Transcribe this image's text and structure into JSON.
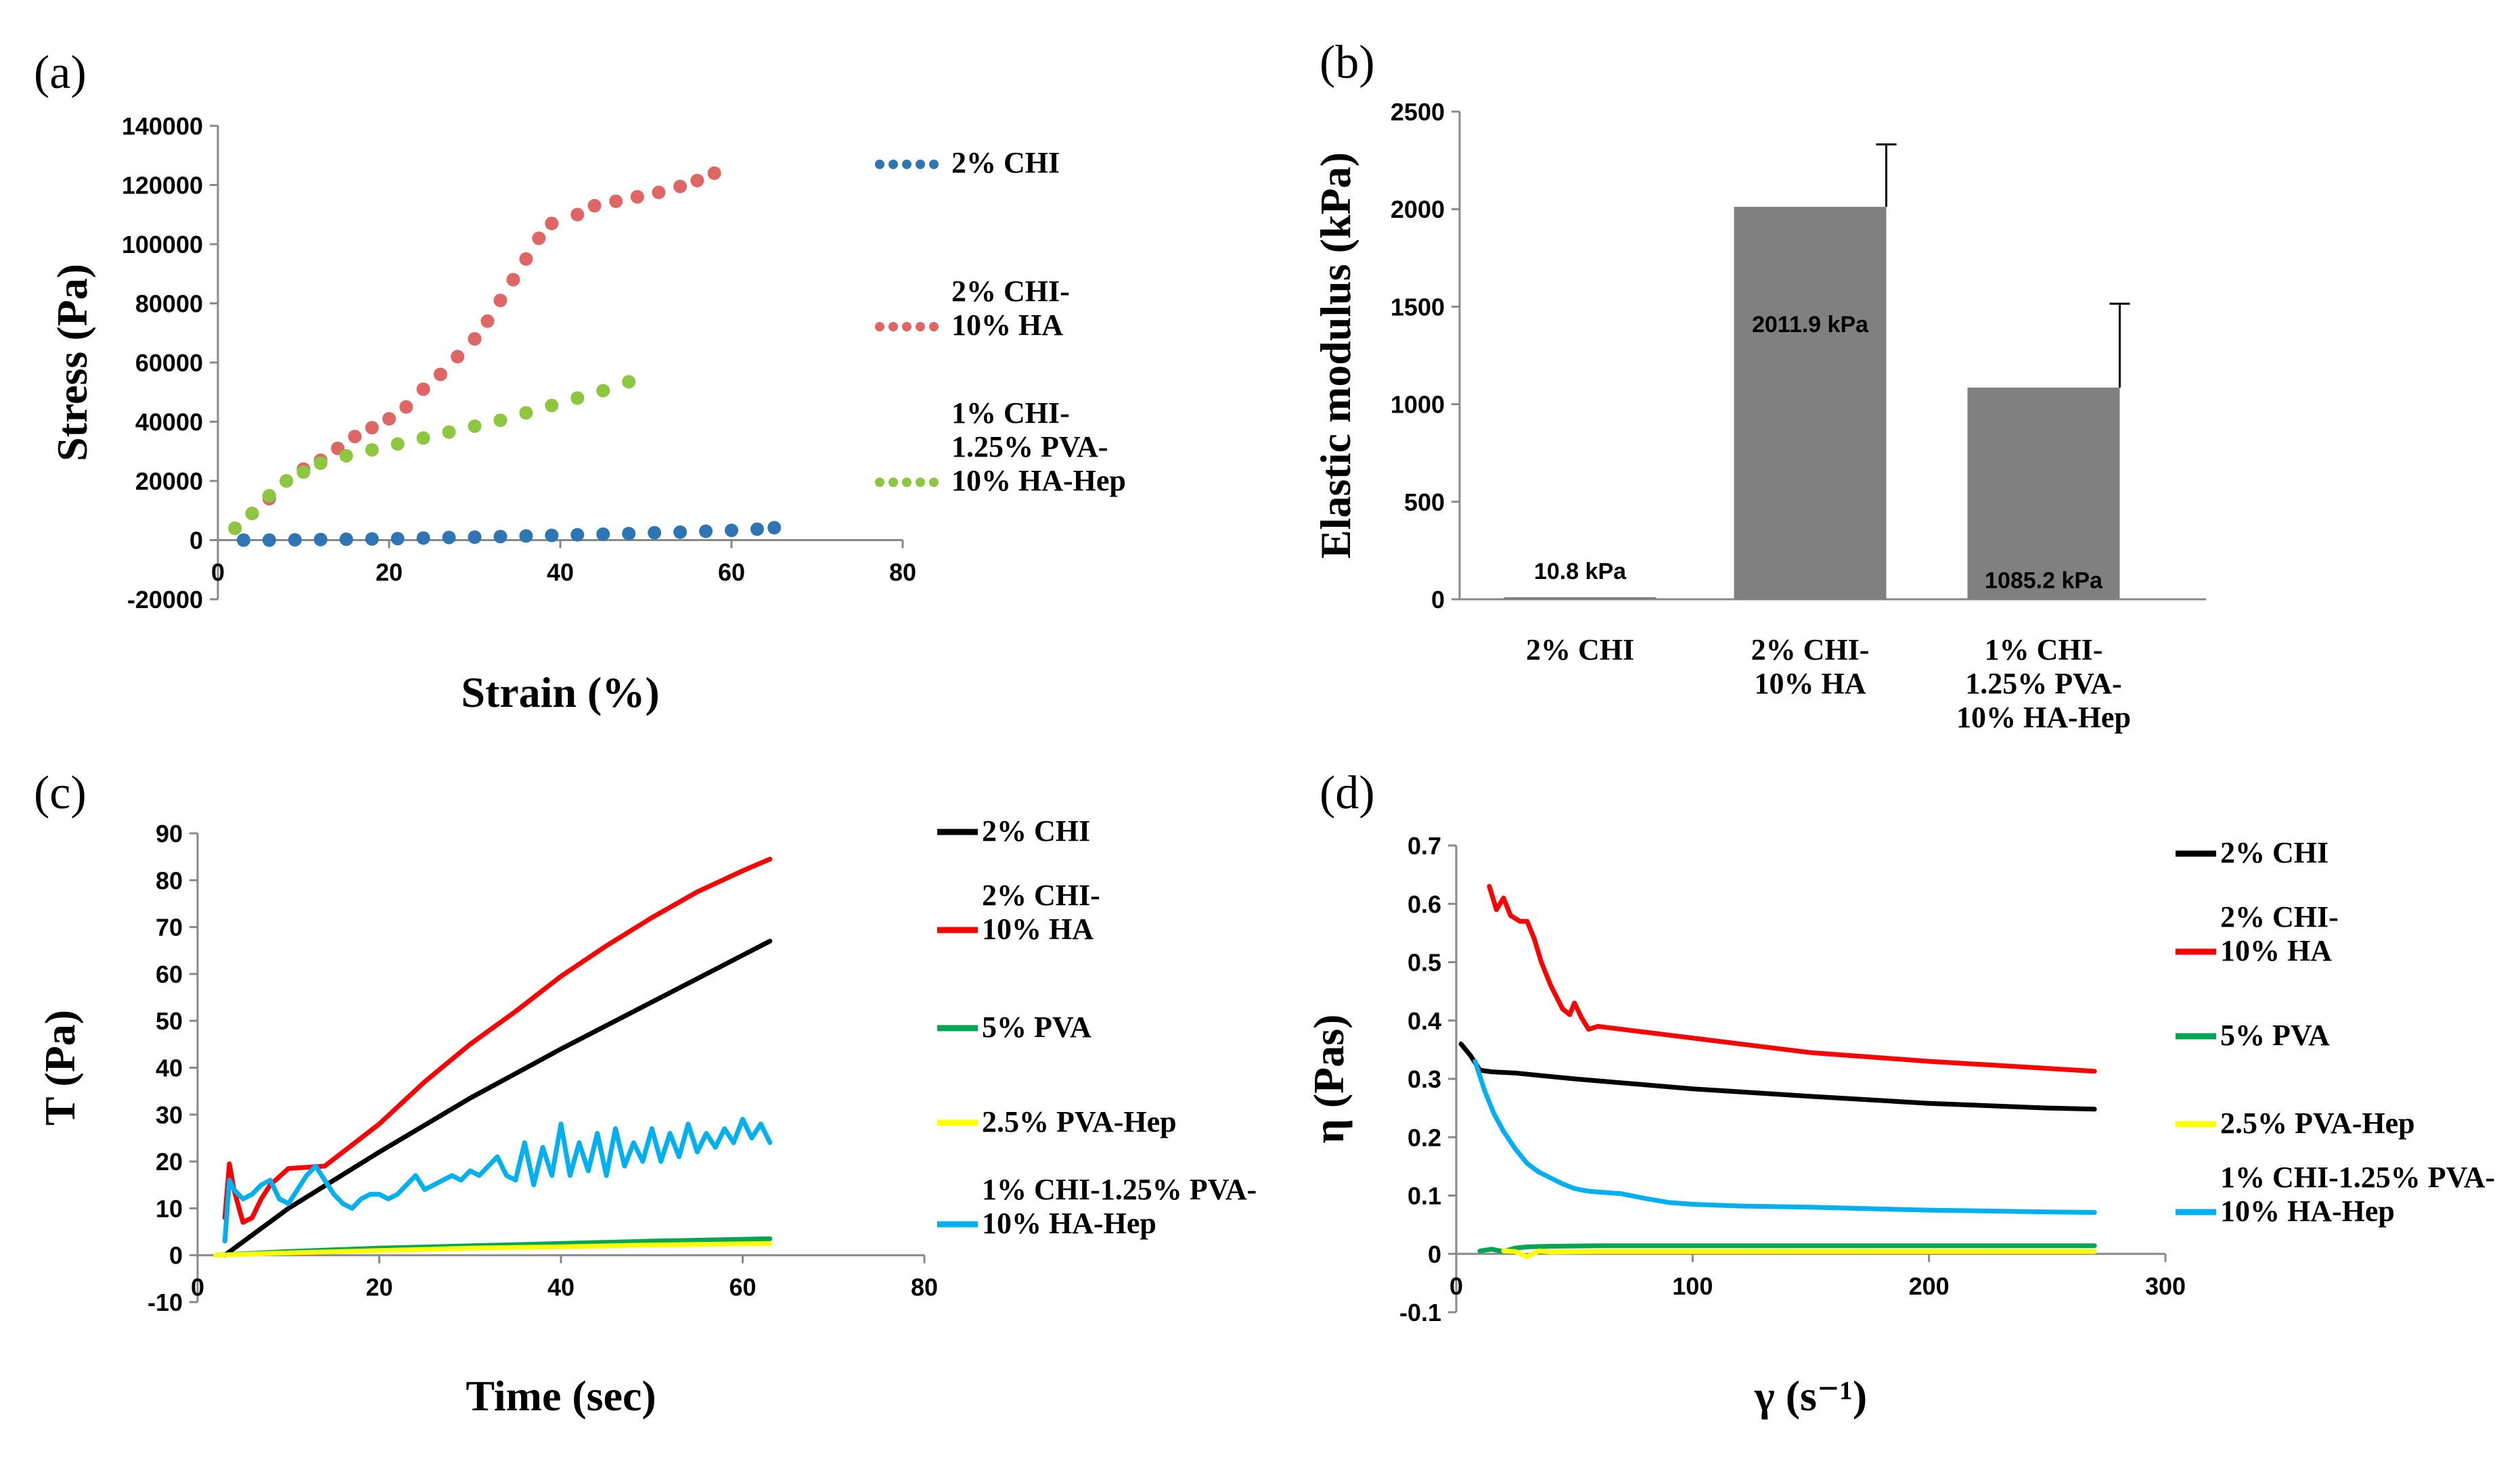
{
  "chart_data": [
    {
      "panel": "(a)",
      "type": "scatter",
      "xlabel": "Strain (%)",
      "ylabel": "Stress (Pa)",
      "xlim": [
        0,
        80
      ],
      "ylim": [
        -20000,
        140000
      ],
      "xticks": [
        "0",
        "20",
        "40",
        "60",
        "80"
      ],
      "yticks": [
        "-20000",
        "0",
        "20000",
        "40000",
        "60000",
        "80000",
        "100000",
        "120000",
        "140000"
      ],
      "legend_position": "right",
      "series": [
        {
          "name": "2% CHI",
          "color": "#2e75b6",
          "x": [
            3,
            6,
            9,
            12,
            15,
            18,
            21,
            24,
            27,
            30,
            33,
            36,
            39,
            42,
            45,
            48,
            51,
            54,
            57,
            60,
            63,
            65
          ],
          "y": [
            0,
            0,
            100,
            200,
            300,
            400,
            500,
            700,
            900,
            1000,
            1200,
            1400,
            1600,
            1800,
            2000,
            2200,
            2500,
            2700,
            3000,
            3300,
            3700,
            4200
          ]
        },
        {
          "name": "2% CHI-\n10% HA",
          "color": "#e06666",
          "x": [
            2,
            4,
            6,
            8,
            10,
            12,
            14,
            16,
            18,
            20,
            22,
            24,
            26,
            28,
            30,
            31.5,
            33,
            34.5,
            36,
            37.5,
            39,
            42,
            44,
            46.5,
            49,
            51.5,
            54,
            56,
            58
          ],
          "y": [
            4000,
            9000,
            14000,
            20000,
            24000,
            27000,
            31000,
            35000,
            38000,
            41000,
            45000,
            51000,
            56000,
            62000,
            68000,
            74000,
            81000,
            88000,
            95000,
            102000,
            107000,
            110000,
            113000,
            114500,
            116000,
            117500,
            119500,
            121500,
            124000
          ]
        },
        {
          "name": "1% CHI-\n1.25% PVA-\n10% HA-Hep",
          "color": "#8dc63f",
          "x": [
            2,
            4,
            6,
            8,
            10,
            12,
            15,
            18,
            21,
            24,
            27,
            30,
            33,
            36,
            39,
            42,
            45,
            48
          ],
          "y": [
            4000,
            9000,
            15000,
            20000,
            23000,
            26000,
            28500,
            30500,
            32500,
            34500,
            36500,
            38500,
            40500,
            43000,
            45500,
            48000,
            50500,
            53500
          ]
        }
      ]
    },
    {
      "panel": "(b)",
      "type": "bar",
      "ylabel": "Elastic modulus (kPa)",
      "ylim": [
        0,
        2500
      ],
      "yticks": [
        "0",
        "500",
        "1000",
        "1500",
        "2000",
        "2500"
      ],
      "categories": [
        "2% CHI",
        "2% CHI-\n10% HA",
        "1% CHI-\n1.25% PVA-\n10% HA-Hep"
      ],
      "values": [
        10.8,
        2011.9,
        1085.2
      ],
      "errors": [
        0,
        320,
        430
      ],
      "data_labels": [
        "10.8 kPa",
        "2011.9 kPa",
        "1085.2 kPa"
      ],
      "bar_color": "#808080"
    },
    {
      "panel": "(c)",
      "type": "line",
      "xlabel": "Time (sec)",
      "ylabel": "T (Pa)",
      "xlim": [
        0,
        80
      ],
      "ylim": [
        -10,
        90
      ],
      "xticks": [
        "0",
        "20",
        "40",
        "60",
        "80"
      ],
      "yticks": [
        "-10",
        "0",
        "10",
        "20",
        "30",
        "40",
        "50",
        "60",
        "70",
        "80",
        "90"
      ],
      "legend_position": "right",
      "series": [
        {
          "name": "2% CHI",
          "color": "#000000",
          "x": [
            3,
            10,
            20,
            30,
            40,
            50,
            60,
            63
          ],
          "y": [
            0,
            10,
            22,
            33.5,
            44,
            54,
            64,
            67
          ]
        },
        {
          "name": "2% CHI-\n10% HA",
          "color": "#ff0000",
          "x": [
            3,
            3.5,
            4,
            5,
            6,
            7,
            8,
            10,
            14,
            16,
            20,
            25,
            30,
            35,
            40,
            45,
            50,
            55,
            60,
            63
          ],
          "y": [
            8,
            19.5,
            14,
            7,
            8,
            12,
            15,
            18.5,
            19,
            22,
            28,
            37,
            45,
            52,
            59.5,
            66,
            72,
            77.5,
            82,
            84.5
          ]
        },
        {
          "name": "5% PVA",
          "color": "#00a651",
          "x": [
            2,
            10,
            20,
            30,
            40,
            50,
            63
          ],
          "y": [
            0,
            0.8,
            1.5,
            2.0,
            2.5,
            3.0,
            3.5
          ]
        },
        {
          "name": "2.5% PVA-Hep",
          "color": "#ffff00",
          "x": [
            2,
            10,
            20,
            30,
            40,
            50,
            63
          ],
          "y": [
            0,
            0.5,
            1.0,
            1.5,
            1.8,
            2.2,
            2.5
          ]
        },
        {
          "name": "1% CHI-1.25% PVA-\n10% HA-Hep",
          "color": "#00b0f0",
          "x": [
            3,
            3.5,
            4,
            5,
            6,
            7,
            8,
            9,
            10,
            11,
            12,
            13,
            14,
            15,
            16,
            17,
            18,
            19,
            20,
            21,
            22,
            23,
            24,
            25,
            26,
            27,
            28,
            29,
            30,
            31,
            32,
            33,
            34,
            35,
            36,
            37,
            38,
            39,
            40,
            41,
            42,
            43,
            44,
            45,
            46,
            47,
            48,
            49,
            50,
            51,
            52,
            53,
            54,
            55,
            56,
            57,
            58,
            59,
            60,
            61,
            62,
            63
          ],
          "y": [
            3,
            16,
            14,
            12,
            13,
            15,
            16,
            12,
            11,
            14,
            17,
            19,
            16,
            13,
            11,
            10,
            12,
            13,
            13,
            12,
            13,
            15,
            17,
            14,
            15,
            16,
            17,
            16,
            18,
            17,
            19,
            21,
            17,
            16,
            24,
            15,
            23,
            17,
            28,
            17,
            24,
            18,
            26,
            17,
            27,
            19,
            24,
            20,
            27,
            20,
            26,
            21,
            28,
            22,
            26,
            23,
            27,
            24,
            29,
            25,
            28,
            24
          ]
        }
      ]
    },
    {
      "panel": "(d)",
      "type": "line",
      "xlabel": "γ (s⁻¹)",
      "ylabel": "η (Pas)",
      "xlim": [
        0,
        300
      ],
      "ylim": [
        -0.1,
        0.7
      ],
      "xticks": [
        "0",
        "100",
        "200",
        "300"
      ],
      "yticks": [
        "-0.1",
        "0",
        "0.1",
        "0.2",
        "0.3",
        "0.4",
        "0.5",
        "0.6",
        "0.7"
      ],
      "legend_position": "right",
      "series": [
        {
          "name": "2% CHI",
          "color": "#000000",
          "x": [
            2,
            6,
            10,
            15,
            25,
            50,
            100,
            150,
            200,
            250,
            270
          ],
          "y": [
            0.36,
            0.34,
            0.315,
            0.312,
            0.31,
            0.3,
            0.283,
            0.27,
            0.258,
            0.25,
            0.248
          ]
        },
        {
          "name": "2% CHI-\n10% HA",
          "color": "#ff0000",
          "x": [
            14,
            17,
            20,
            23,
            27,
            30,
            33,
            36,
            40,
            45,
            48,
            50,
            53,
            56,
            60,
            70,
            80,
            90,
            100,
            120,
            150,
            200,
            250,
            270
          ],
          "y": [
            0.63,
            0.59,
            0.61,
            0.58,
            0.57,
            0.57,
            0.54,
            0.5,
            0.46,
            0.42,
            0.41,
            0.43,
            0.405,
            0.385,
            0.39,
            0.385,
            0.38,
            0.375,
            0.37,
            0.36,
            0.345,
            0.33,
            0.318,
            0.313
          ]
        },
        {
          "name": "5% PVA",
          "color": "#00a651",
          "x": [
            10,
            15,
            20,
            25,
            30,
            40,
            60,
            100,
            150,
            200,
            270
          ],
          "y": [
            0.005,
            0.008,
            0.004,
            0.01,
            0.012,
            0.013,
            0.014,
            0.014,
            0.014,
            0.014,
            0.014
          ]
        },
        {
          "name": "2.5% PVA-Hep",
          "color": "#ffff00",
          "x": [
            20,
            25,
            30,
            35,
            40,
            60,
            100,
            150,
            200,
            270
          ],
          "y": [
            0.005,
            0.004,
            -0.005,
            0.005,
            0.003,
            0.004,
            0.004,
            0.004,
            0.004,
            0.004
          ]
        },
        {
          "name": "1% CHI-1.25% PVA-\n10% HA-Hep",
          "color": "#00b0f0",
          "x": [
            8,
            12,
            16,
            20,
            25,
            30,
            35,
            40,
            45,
            50,
            55,
            60,
            70,
            80,
            90,
            100,
            120,
            150,
            200,
            250,
            270
          ],
          "y": [
            0.33,
            0.28,
            0.24,
            0.21,
            0.18,
            0.155,
            0.14,
            0.13,
            0.12,
            0.112,
            0.108,
            0.106,
            0.103,
            0.095,
            0.088,
            0.085,
            0.082,
            0.08,
            0.075,
            0.072,
            0.071
          ]
        }
      ]
    }
  ]
}
